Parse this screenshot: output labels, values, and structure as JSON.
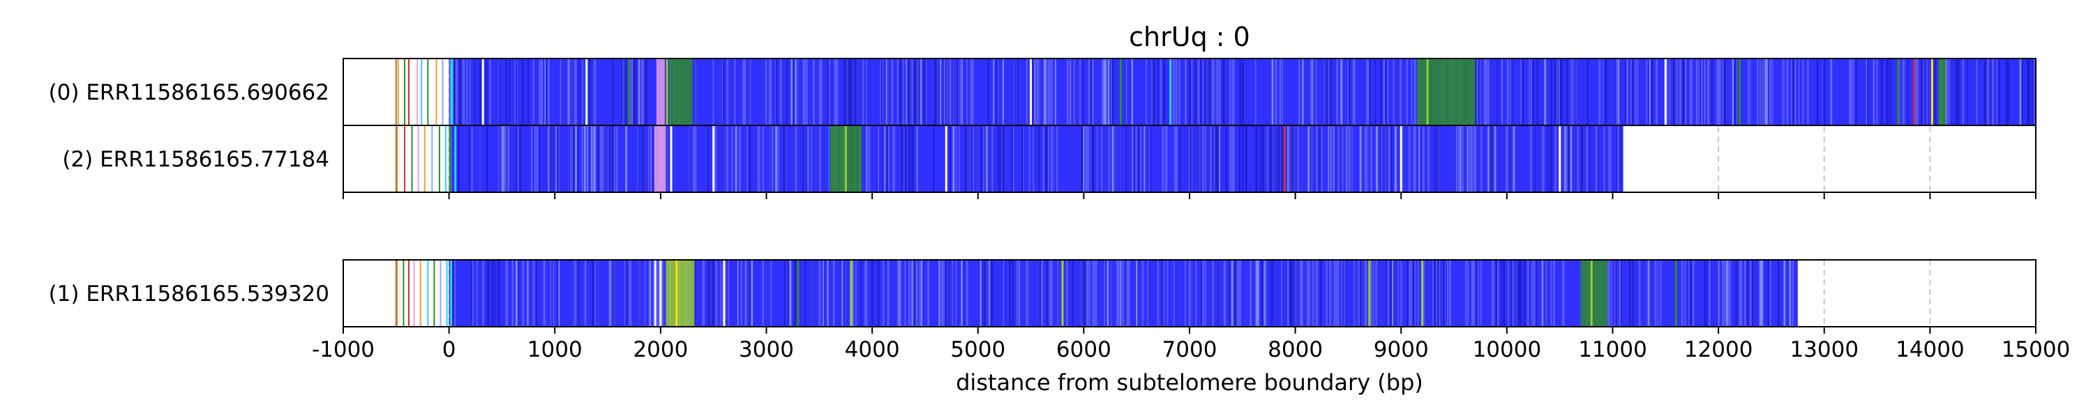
{
  "chart_data": {
    "type": "heatmap",
    "title": "chrUq : 0",
    "xlabel": "distance from subtelomere boundary (bp)",
    "xlim": [
      -1000,
      15000
    ],
    "xticks": [
      -1000,
      0,
      1000,
      2000,
      3000,
      4000,
      5000,
      6000,
      7000,
      8000,
      9000,
      10000,
      11000,
      12000,
      13000,
      14000,
      15000
    ],
    "grid": "dashed vertical lines at each x tick",
    "colors": {
      "repeat": "#3030ff",
      "green": "#2e8b2e",
      "light_green": "#9acd32",
      "yellow": "#ffe000",
      "pink": "#e6a0e6",
      "cyan": "#30d0ff",
      "light_blue": "#8fa8ff",
      "red": "#d03030",
      "orange": "#e8a040",
      "white": "#ffffff"
    },
    "panels": [
      {
        "tracks": [
          {
            "name": "(0) ERR11586165.690662",
            "read_start": -500,
            "repeat_start": 0,
            "read_end": 15000,
            "bands": [
              {
                "start": 1960,
                "end": 2040,
                "color": "pink"
              },
              {
                "start": 2080,
                "end": 2300,
                "color": "green"
              },
              {
                "start": 9150,
                "end": 9700,
                "color": "green"
              },
              {
                "start": 14080,
                "end": 14150,
                "color": "green"
              }
            ],
            "flanking_marks": [
              -480,
              -420,
              -380,
              -300,
              -260,
              -200,
              -120,
              -60,
              20
            ],
            "flanking_colors": [
              "orange",
              "green",
              "red",
              "pink",
              "cyan",
              "green",
              "orange",
              "light_blue",
              "cyan"
            ],
            "marks": [
              {
                "x": 30,
                "color": "cyan"
              },
              {
                "x": 320,
                "color": "white"
              },
              {
                "x": 1300,
                "color": "white"
              },
              {
                "x": 1700,
                "color": "green"
              },
              {
                "x": 2060,
                "color": "light_green"
              },
              {
                "x": 5500,
                "color": "white"
              },
              {
                "x": 6350,
                "color": "green"
              },
              {
                "x": 6820,
                "color": "cyan"
              },
              {
                "x": 9250,
                "color": "light_green"
              },
              {
                "x": 11500,
                "color": "white"
              },
              {
                "x": 12200,
                "color": "green"
              },
              {
                "x": 13700,
                "color": "green"
              },
              {
                "x": 13850,
                "color": "red"
              },
              {
                "x": 14020,
                "color": "yellow"
              }
            ]
          },
          {
            "name": "(2) ERR11586165.77184",
            "read_start": -500,
            "repeat_start": 0,
            "read_end": 11100,
            "bands": [
              {
                "start": 1940,
                "end": 2050,
                "color": "pink"
              },
              {
                "start": 3600,
                "end": 3900,
                "color": "green"
              }
            ],
            "flanking_marks": [
              -490,
              -420,
              -350,
              -290,
              -230,
              -160,
              -90,
              -30
            ],
            "flanking_colors": [
              "orange",
              "red",
              "green",
              "pink",
              "orange",
              "light_blue",
              "green",
              "cyan"
            ],
            "marks": [
              {
                "x": 10,
                "color": "green"
              },
              {
                "x": 60,
                "color": "cyan"
              },
              {
                "x": 2100,
                "color": "white"
              },
              {
                "x": 2500,
                "color": "white"
              },
              {
                "x": 3750,
                "color": "light_green"
              },
              {
                "x": 4700,
                "color": "white"
              },
              {
                "x": 7900,
                "color": "red"
              },
              {
                "x": 9000,
                "color": "white"
              },
              {
                "x": 10500,
                "color": "white"
              }
            ]
          }
        ]
      },
      {
        "tracks": [
          {
            "name": "(1) ERR11586165.539320",
            "read_start": -500,
            "repeat_start": 0,
            "read_end": 12750,
            "bands": [
              {
                "start": 2050,
                "end": 2320,
                "color": "light_green"
              },
              {
                "start": 10700,
                "end": 10950,
                "color": "green"
              }
            ],
            "flanking_marks": [
              -490,
              -430,
              -380,
              -330,
              -270,
              -200,
              -140,
              -80,
              -20
            ],
            "flanking_colors": [
              "orange",
              "green",
              "red",
              "pink",
              "orange",
              "cyan",
              "green",
              "light_blue",
              "cyan"
            ],
            "marks": [
              {
                "x": 20,
                "color": "cyan"
              },
              {
                "x": 1950,
                "color": "white"
              },
              {
                "x": 2000,
                "color": "white"
              },
              {
                "x": 2150,
                "color": "yellow"
              },
              {
                "x": 2600,
                "color": "white"
              },
              {
                "x": 3300,
                "color": "green"
              },
              {
                "x": 3800,
                "color": "light_green"
              },
              {
                "x": 5800,
                "color": "light_green"
              },
              {
                "x": 8700,
                "color": "light_green"
              },
              {
                "x": 9200,
                "color": "light_green"
              },
              {
                "x": 10800,
                "color": "light_green"
              },
              {
                "x": 11600,
                "color": "green"
              }
            ]
          }
        ]
      }
    ]
  }
}
